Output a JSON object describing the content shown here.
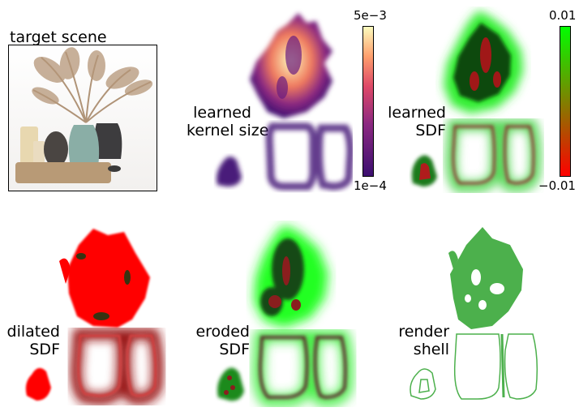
{
  "target_scene": {
    "title": "target scene"
  },
  "panels": {
    "kernel": {
      "label_line1": "learned",
      "label_line2": "kernel size",
      "colorbar": {
        "max": "5e−3",
        "min": "1e−4"
      }
    },
    "sdf": {
      "label_line1": "learned",
      "label_line2": "SDF",
      "colorbar": {
        "max": "0.01",
        "min": "−0.01"
      }
    },
    "dilated": {
      "label_line1": "dilated",
      "label_line2": "SDF"
    },
    "eroded": {
      "label_line1": "eroded",
      "label_line2": "SDF"
    },
    "shell": {
      "label_line1": "render",
      "label_line2": "shell"
    }
  },
  "colors": {
    "magma_low": "#3b0f70",
    "magma_mid": "#b5367a",
    "magma_high": "#fcfdbf",
    "sdf_pos": "#00ff00",
    "sdf_neg": "#ff0000",
    "shell": "#4cb04c"
  }
}
